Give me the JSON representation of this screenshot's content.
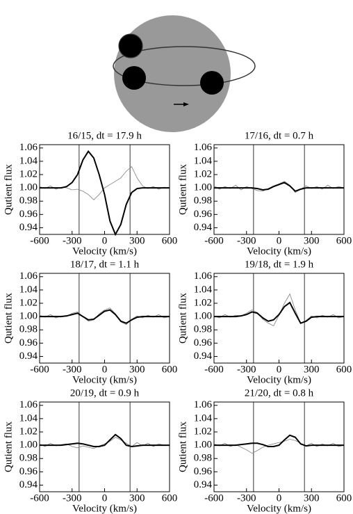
{
  "chart_data": [
    {
      "type": "line",
      "title": "16/15, dt = 17.9 h",
      "xlabel": "Velocity (km/s)",
      "ylabel": "Qutient flux",
      "x": [
        -600,
        -550,
        -500,
        -450,
        -400,
        -350,
        -300,
        -250,
        -200,
        -150,
        -100,
        -50,
        0,
        50,
        100,
        150,
        200,
        250,
        300,
        350,
        400,
        450,
        500,
        550,
        600
      ],
      "xlim": [
        -600,
        600
      ],
      "xticks": [
        -600,
        -300,
        0,
        300,
        600
      ],
      "ylim": [
        0.93,
        1.065
      ],
      "yticks": [
        {
          "value": 0.94,
          "label": "0.94"
        },
        {
          "value": 0.96,
          "label": "0.96"
        },
        {
          "value": 0.98,
          "label": "0.98"
        },
        {
          "value": 1.0,
          "label": "1.00"
        },
        {
          "value": 1.02,
          "label": "1.02"
        },
        {
          "value": 1.04,
          "label": "1.04"
        },
        {
          "value": 1.06,
          "label": "1.06"
        }
      ],
      "vlines": [
        -235,
        235
      ],
      "series": [
        {
          "color": "#808080",
          "values": [
            1.002,
            0.999,
            1.003,
            0.998,
            1.001,
            1.0,
            0.997,
            0.998,
            0.995,
            0.99,
            0.982,
            0.99,
            1.0,
            1.005,
            1.01,
            1.015,
            1.025,
            1.032,
            1.015,
            1.003,
            0.999,
            1.002,
            0.998,
            1.001,
            1.0
          ]
        },
        {
          "color": "#000000",
          "values": [
            1.0,
            1.0,
            1.0,
            1.0,
            1.0,
            1.002,
            1.008,
            1.02,
            1.042,
            1.055,
            1.045,
            1.02,
            0.99,
            0.95,
            0.93,
            0.945,
            0.975,
            0.993,
            0.999,
            1.0,
            1.0,
            1.0,
            1.0,
            1.0,
            1.0
          ]
        }
      ]
    },
    {
      "type": "line",
      "title": "17/16, dt = 0.7 h",
      "xlabel": "Velocity (km/s)",
      "ylabel": "Qutient flux",
      "x": [
        -600,
        -550,
        -500,
        -450,
        -400,
        -350,
        -300,
        -250,
        -200,
        -150,
        -100,
        -50,
        0,
        50,
        100,
        150,
        200,
        250,
        300,
        350,
        400,
        450,
        500,
        550,
        600
      ],
      "xlim": [
        -600,
        600
      ],
      "xticks": [
        -600,
        -300,
        0,
        300,
        600
      ],
      "ylim": [
        0.93,
        1.065
      ],
      "yticks": [
        {
          "value": 0.94,
          "label": "0.94"
        },
        {
          "value": 0.96,
          "label": "0.96"
        },
        {
          "value": 0.98,
          "label": "0.98"
        },
        {
          "value": 1.0,
          "label": "1.00"
        },
        {
          "value": 1.02,
          "label": "1.02"
        },
        {
          "value": 1.04,
          "label": "1.04"
        },
        {
          "value": 1.06,
          "label": "1.06"
        }
      ],
      "vlines": [
        -235,
        235
      ],
      "series": [
        {
          "color": "#808080",
          "values": [
            1.003,
            0.998,
            1.002,
            0.999,
            1.004,
            0.997,
            1.002,
            0.999,
            0.996,
            0.995,
            0.999,
            1.003,
            1.006,
            1.01,
            1.004,
            0.993,
            0.998,
            1.003,
            0.999,
            1.002,
            0.998,
            1.004,
            0.999,
            1.002,
            1.0
          ]
        },
        {
          "color": "#000000",
          "values": [
            1.0,
            1.0,
            1.0,
            1.0,
            1.0,
            1.0,
            1.0,
            1.0,
            0.999,
            0.997,
            0.998,
            1.002,
            1.005,
            1.008,
            1.003,
            0.995,
            0.998,
            1.0,
            1.0,
            1.0,
            1.0,
            1.0,
            1.0,
            1.0,
            1.0
          ]
        }
      ]
    },
    {
      "type": "line",
      "title": "18/17, dt = 1.1 h",
      "xlabel": "Velocity (km/s)",
      "ylabel": "Qutient flux",
      "x": [
        -600,
        -550,
        -500,
        -450,
        -400,
        -350,
        -300,
        -250,
        -200,
        -150,
        -100,
        -50,
        0,
        50,
        100,
        150,
        200,
        250,
        300,
        350,
        400,
        450,
        500,
        550,
        600
      ],
      "xlim": [
        -600,
        600
      ],
      "xticks": [
        -600,
        -300,
        0,
        300,
        600
      ],
      "ylim": [
        0.93,
        1.065
      ],
      "yticks": [
        {
          "value": 0.94,
          "label": "0.94"
        },
        {
          "value": 0.96,
          "label": "0.96"
        },
        {
          "value": 0.98,
          "label": "0.98"
        },
        {
          "value": 1.0,
          "label": "1.00"
        },
        {
          "value": 1.02,
          "label": "1.02"
        },
        {
          "value": 1.04,
          "label": "1.04"
        },
        {
          "value": 1.06,
          "label": "1.06"
        }
      ],
      "vlines": [
        -235,
        235
      ],
      "series": [
        {
          "color": "#808080",
          "values": [
            1.002,
            0.999,
            1.003,
            0.998,
            1.001,
            1.0,
            1.005,
            1.007,
            1.0,
            0.993,
            0.995,
            1.004,
            1.01,
            1.013,
            1.004,
            0.992,
            0.988,
            0.996,
            1.001,
            0.998,
            1.002,
            0.999,
            1.003,
            0.998,
            1.0
          ]
        },
        {
          "color": "#000000",
          "values": [
            1.0,
            1.0,
            1.0,
            1.0,
            1.0,
            1.001,
            1.003,
            1.005,
            1.0,
            0.995,
            0.996,
            1.002,
            1.008,
            1.01,
            1.003,
            0.993,
            0.99,
            0.995,
            0.999,
            1.0,
            1.0,
            1.0,
            1.0,
            1.0,
            1.0
          ]
        }
      ]
    },
    {
      "type": "line",
      "title": "19/18, dt = 1.9 h",
      "xlabel": "Velocity (km/s)",
      "ylabel": "Qutient flux",
      "x": [
        -600,
        -550,
        -500,
        -450,
        -400,
        -350,
        -300,
        -250,
        -200,
        -150,
        -100,
        -50,
        0,
        50,
        100,
        150,
        200,
        250,
        300,
        350,
        400,
        450,
        500,
        550,
        600
      ],
      "xlim": [
        -600,
        600
      ],
      "xticks": [
        -600,
        -300,
        0,
        300,
        600
      ],
      "ylim": [
        0.93,
        1.065
      ],
      "yticks": [
        {
          "value": 0.94,
          "label": "0.94"
        },
        {
          "value": 0.96,
          "label": "0.96"
        },
        {
          "value": 0.98,
          "label": "0.98"
        },
        {
          "value": 1.0,
          "label": "1.00"
        },
        {
          "value": 1.02,
          "label": "1.02"
        },
        {
          "value": 1.04,
          "label": "1.04"
        },
        {
          "value": 1.06,
          "label": "1.06"
        }
      ],
      "vlines": [
        -235,
        235
      ],
      "series": [
        {
          "color": "#808080",
          "values": [
            1.001,
            0.998,
            1.003,
            0.999,
            1.002,
            1.001,
            1.005,
            1.01,
            1.006,
            0.996,
            0.99,
            0.986,
            1.002,
            1.02,
            1.034,
            1.01,
            0.99,
            0.994,
            1.001,
            0.998,
            1.002,
            0.999,
            1.003,
            0.998,
            1.0
          ]
        },
        {
          "color": "#000000",
          "values": [
            1.0,
            1.0,
            1.0,
            1.0,
            1.0,
            1.001,
            1.003,
            1.007,
            1.005,
            0.998,
            0.993,
            0.995,
            1.003,
            1.015,
            1.021,
            1.005,
            0.99,
            0.993,
            0.999,
            1.0,
            1.0,
            1.0,
            1.0,
            1.0,
            1.0
          ]
        }
      ]
    },
    {
      "type": "line",
      "title": "20/19, dt = 0.9 h",
      "xlabel": "Velocity (km/s)",
      "ylabel": "Qutient flux",
      "x": [
        -600,
        -550,
        -500,
        -450,
        -400,
        -350,
        -300,
        -250,
        -200,
        -150,
        -100,
        -50,
        0,
        50,
        100,
        150,
        200,
        250,
        300,
        350,
        400,
        450,
        500,
        550,
        600
      ],
      "xlim": [
        -600,
        600
      ],
      "xticks": [
        -600,
        -300,
        0,
        300,
        600
      ],
      "ylim": [
        0.93,
        1.065
      ],
      "yticks": [
        {
          "value": 0.94,
          "label": "0.94"
        },
        {
          "value": 0.96,
          "label": "0.96"
        },
        {
          "value": 0.98,
          "label": "0.98"
        },
        {
          "value": 1.0,
          "label": "1.00"
        },
        {
          "value": 1.02,
          "label": "1.02"
        },
        {
          "value": 1.04,
          "label": "1.04"
        },
        {
          "value": 1.06,
          "label": "1.06"
        }
      ],
      "vlines": [
        -235,
        235
      ],
      "series": [
        {
          "color": "#808080",
          "values": [
            1.002,
            0.998,
            1.003,
            0.999,
            1.001,
            1.002,
            0.998,
            0.996,
            0.999,
            0.997,
            0.995,
            0.999,
            1.002,
            1.006,
            1.012,
            1.008,
            1.003,
            0.998,
            1.004,
            0.999,
            1.003,
            0.998,
            1.002,
            1.0,
            1.0
          ]
        },
        {
          "color": "#000000",
          "values": [
            1.0,
            1.0,
            1.0,
            1.0,
            1.0,
            1.001,
            1.002,
            1.003,
            1.002,
            1.0,
            0.998,
            0.998,
            1.0,
            1.008,
            1.016,
            1.01,
            1.0,
            0.998,
            0.999,
            1.0,
            1.0,
            1.0,
            1.0,
            1.0,
            1.0
          ]
        }
      ]
    },
    {
      "type": "line",
      "title": "21/20, dt = 0.8 h",
      "xlabel": "Velocity (km/s)",
      "ylabel": "Qutient flux",
      "x": [
        -600,
        -550,
        -500,
        -450,
        -400,
        -350,
        -300,
        -250,
        -200,
        -150,
        -100,
        -50,
        0,
        50,
        100,
        150,
        200,
        250,
        300,
        350,
        400,
        450,
        500,
        550,
        600
      ],
      "xlim": [
        -600,
        600
      ],
      "xticks": [
        -600,
        -300,
        0,
        300,
        600
      ],
      "ylim": [
        0.93,
        1.065
      ],
      "yticks": [
        {
          "value": 0.94,
          "label": "0.94"
        },
        {
          "value": 0.96,
          "label": "0.96"
        },
        {
          "value": 0.98,
          "label": "0.98"
        },
        {
          "value": 1.0,
          "label": "1.00"
        },
        {
          "value": 1.02,
          "label": "1.02"
        },
        {
          "value": 1.04,
          "label": "1.04"
        },
        {
          "value": 1.06,
          "label": "1.06"
        }
      ],
      "vlines": [
        -235,
        235
      ],
      "series": [
        {
          "color": "#808080",
          "values": [
            1.002,
            0.999,
            1.003,
            0.998,
            1.001,
            0.997,
            0.993,
            0.988,
            0.992,
            0.997,
            1.0,
            1.002,
            1.004,
            1.006,
            1.009,
            1.007,
            1.003,
            0.999,
            1.003,
            0.998,
            1.002,
            0.999,
            1.003,
            0.998,
            1.0
          ]
        },
        {
          "color": "#000000",
          "values": [
            1.0,
            1.0,
            1.0,
            1.0,
            1.0,
            1.001,
            1.002,
            1.003,
            1.003,
            1.001,
            0.998,
            0.998,
            1.0,
            1.008,
            1.015,
            1.012,
            1.002,
            0.999,
            1.0,
            1.0,
            1.0,
            1.0,
            1.0,
            1.0,
            1.0
          ]
        }
      ]
    }
  ]
}
